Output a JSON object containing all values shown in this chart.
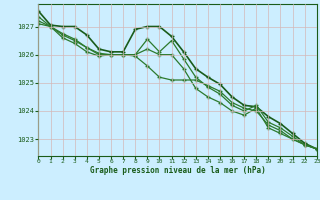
{
  "title": "Graphe pression niveau de la mer (hPa)",
  "background_color": "#cceeff",
  "grid_color": "#aaddcc",
  "line_colors": [
    "#1a5c1a",
    "#2d7a2d",
    "#2d7a2d",
    "#2d7a2d"
  ],
  "xlim": [
    0,
    23
  ],
  "ylim": [
    1022.4,
    1027.8
  ],
  "yticks": [
    1023,
    1024,
    1025,
    1026,
    1027
  ],
  "xticks": [
    0,
    1,
    2,
    3,
    4,
    5,
    6,
    7,
    8,
    9,
    10,
    11,
    12,
    13,
    14,
    15,
    16,
    17,
    18,
    19,
    20,
    21,
    22,
    23
  ],
  "series": [
    [
      1027.55,
      1027.05,
      1027.0,
      1027.0,
      1026.7,
      1026.2,
      1026.1,
      1026.1,
      1026.9,
      1027.0,
      1027.0,
      1026.65,
      1026.1,
      1025.5,
      1025.2,
      1024.95,
      1024.5,
      1024.2,
      1024.15,
      1023.8,
      1023.55,
      1023.2,
      1022.85,
      1022.65
    ],
    [
      1027.1,
      1027.0,
      1026.75,
      1026.55,
      1026.25,
      1026.05,
      1026.0,
      1026.0,
      1026.0,
      1026.55,
      1026.1,
      1026.5,
      1025.85,
      1025.2,
      1024.85,
      1024.6,
      1024.2,
      1024.0,
      1024.2,
      1023.6,
      1023.4,
      1023.1,
      1022.8,
      1022.65
    ],
    [
      1027.2,
      1027.0,
      1026.7,
      1026.5,
      1026.25,
      1026.0,
      1026.0,
      1026.0,
      1026.0,
      1026.2,
      1026.0,
      1026.0,
      1025.5,
      1024.8,
      1024.5,
      1024.3,
      1024.0,
      1023.85,
      1024.1,
      1023.4,
      1023.2,
      1023.0,
      1022.8,
      1022.65
    ],
    [
      1027.35,
      1027.0,
      1026.6,
      1026.4,
      1026.1,
      1025.95,
      1026.0,
      1026.0,
      1025.95,
      1025.6,
      1025.2,
      1025.1,
      1025.1,
      1025.1,
      1024.9,
      1024.7,
      1024.3,
      1024.1,
      1024.0,
      1023.5,
      1023.3,
      1023.0,
      1022.8,
      1022.65
    ]
  ]
}
